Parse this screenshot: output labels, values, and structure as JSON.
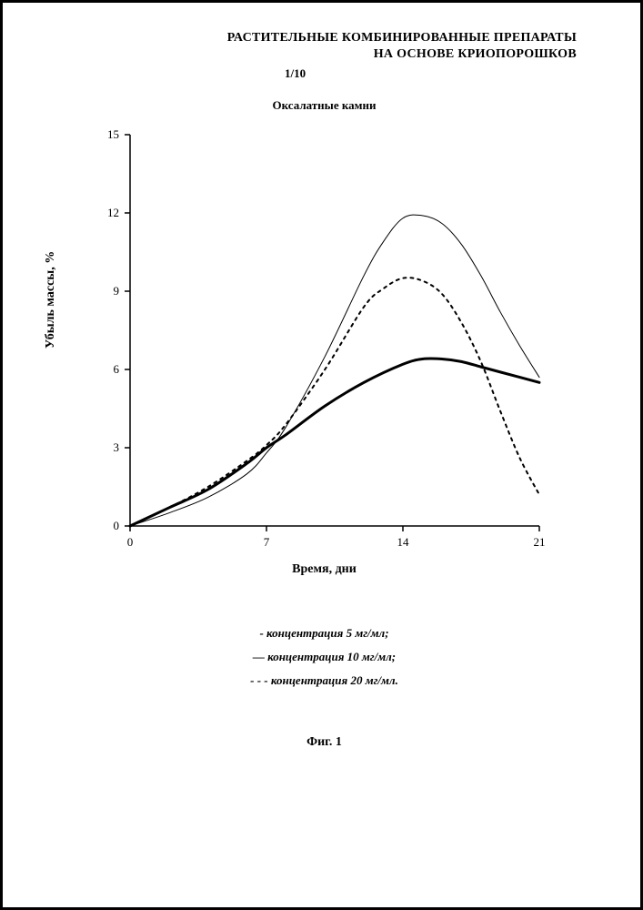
{
  "header": {
    "line1": "РАСТИТЕЛЬНЫЕ КОМБИНИРОВАННЫЕ ПРЕПАРАТЫ",
    "line2": "НА ОСНОВЕ КРИОПОРОШКОВ"
  },
  "page_number": "1/10",
  "chart": {
    "type": "line",
    "title": "Оксалатные камни",
    "xlabel": "Время, дни",
    "ylabel": "Убыль массы, %",
    "xlim": [
      0,
      21
    ],
    "ylim": [
      0,
      15
    ],
    "xtick_step": 7,
    "ytick_step": 3,
    "xticks": [
      0,
      7,
      14,
      21
    ],
    "yticks": [
      0,
      3,
      6,
      9,
      12,
      15
    ],
    "background_color": "#ffffff",
    "axis_color": "#000000",
    "tick_font_size": 13,
    "label_font_size": 14,
    "series": [
      {
        "name": "концентрация 5 мг/мл",
        "style": "thin-solid",
        "stroke": "#000000",
        "stroke_width": 1,
        "dash": "none",
        "x": [
          0,
          2,
          4,
          6,
          7,
          8,
          10,
          12,
          13,
          14,
          15,
          16,
          17,
          18,
          19,
          20,
          21
        ],
        "y": [
          0,
          0.5,
          1.1,
          2.0,
          2.8,
          3.8,
          6.5,
          9.6,
          10.9,
          11.8,
          11.9,
          11.6,
          10.8,
          9.6,
          8.2,
          6.9,
          5.7
        ]
      },
      {
        "name": "концентрация 10 мг/мл",
        "style": "thick-solid",
        "stroke": "#000000",
        "stroke_width": 3,
        "dash": "none",
        "x": [
          0,
          2,
          4,
          6,
          7,
          8,
          10,
          12,
          14,
          15,
          16,
          17,
          18,
          19,
          20,
          21
        ],
        "y": [
          0,
          0.7,
          1.4,
          2.4,
          3.0,
          3.5,
          4.6,
          5.5,
          6.2,
          6.4,
          6.4,
          6.3,
          6.1,
          5.9,
          5.7,
          5.5
        ]
      },
      {
        "name": "концентрация 20 мг/мл",
        "style": "dashed",
        "stroke": "#000000",
        "stroke_width": 2,
        "dash": "3,5",
        "x": [
          0,
          2,
          4,
          6,
          7,
          8,
          10,
          12,
          13,
          14,
          15,
          16,
          17,
          18,
          19,
          20,
          21
        ],
        "y": [
          0,
          0.7,
          1.5,
          2.5,
          3.1,
          3.9,
          6.0,
          8.4,
          9.1,
          9.5,
          9.4,
          8.9,
          7.8,
          6.3,
          4.4,
          2.6,
          1.2
        ]
      }
    ]
  },
  "legend": {
    "items": [
      {
        "prefix": "- ",
        "text": "концентрация 5 мг/мл;"
      },
      {
        "prefix": "— ",
        "text": "концентрация 10 мг/мл;"
      },
      {
        "prefix": "- - - ",
        "text": "концентрация 20 мг/мл."
      }
    ]
  },
  "figure_caption": "Фиг. 1"
}
